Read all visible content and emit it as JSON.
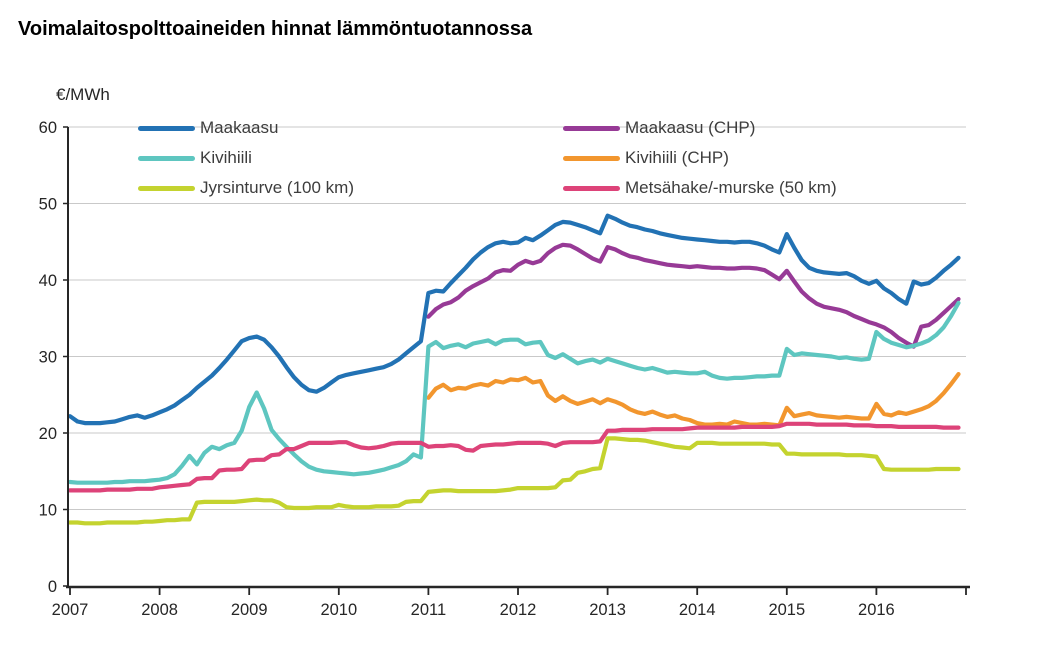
{
  "page": {
    "title": "Voimalaitospolttoaineiden hinnat lämmöntuotannossa"
  },
  "chart_data": {
    "type": "line",
    "title": "Voimalaitospolttoaineiden hinnat lämmöntuotannossa",
    "ylabel": "€/MWh",
    "ylim": [
      0,
      60
    ],
    "y_ticks": [
      0,
      10,
      20,
      30,
      40,
      50,
      60
    ],
    "x_tick_labels": [
      "2007",
      "2008",
      "2009",
      "2010",
      "2011",
      "2012",
      "2013",
      "2014",
      "2015",
      "2016"
    ],
    "frequency": "monthly",
    "x_range": "2007-01 to 2016-12",
    "grid": true,
    "legend_position": "top-inside-two-columns",
    "series": [
      {
        "name": "Maakaasu",
        "color": "#2272b4",
        "values": [
          22.2,
          21.5,
          21.3,
          21.3,
          21.3,
          21.4,
          21.5,
          21.8,
          22.1,
          22.3,
          22.0,
          22.3,
          22.7,
          23.1,
          23.6,
          24.3,
          25.0,
          25.9,
          26.7,
          27.5,
          28.5,
          29.6,
          30.8,
          32.0,
          32.4,
          32.6,
          32.2,
          31.2,
          30.0,
          28.6,
          27.3,
          26.3,
          25.6,
          25.4,
          25.9,
          26.6,
          27.3,
          27.6,
          27.8,
          28.0,
          28.2,
          28.4,
          28.6,
          29.0,
          29.6,
          30.4,
          31.2,
          32.0,
          38.3,
          38.6,
          38.5,
          39.6,
          40.6,
          41.6,
          42.7,
          43.6,
          44.3,
          44.8,
          45.0,
          44.8,
          44.9,
          45.5,
          45.2,
          45.8,
          46.5,
          47.2,
          47.6,
          47.5,
          47.2,
          46.9,
          46.5,
          46.1,
          48.4,
          48.0,
          47.5,
          47.1,
          46.9,
          46.6,
          46.4,
          46.1,
          45.9,
          45.7,
          45.5,
          45.4,
          45.3,
          45.2,
          45.1,
          45.0,
          45.0,
          44.9,
          45.0,
          45.0,
          44.8,
          44.5,
          44.0,
          43.6,
          46.0,
          44.2,
          42.6,
          41.6,
          41.2,
          41.0,
          40.9,
          40.8,
          40.9,
          40.5,
          39.9,
          39.5,
          39.9,
          38.9,
          38.3,
          37.5,
          36.9,
          39.8,
          39.4,
          39.6,
          40.3,
          41.2,
          42.0,
          42.9
        ]
      },
      {
        "name": "Maakaasu (CHP)",
        "color": "#973a96",
        "values": [
          null,
          null,
          null,
          null,
          null,
          null,
          null,
          null,
          null,
          null,
          null,
          null,
          null,
          null,
          null,
          null,
          null,
          null,
          null,
          null,
          null,
          null,
          null,
          null,
          null,
          null,
          null,
          null,
          null,
          null,
          null,
          null,
          null,
          null,
          null,
          null,
          null,
          null,
          null,
          null,
          null,
          null,
          null,
          null,
          null,
          null,
          null,
          null,
          35.2,
          36.2,
          36.8,
          37.1,
          37.7,
          38.6,
          39.2,
          39.7,
          40.2,
          41.0,
          41.3,
          41.2,
          42.0,
          42.5,
          42.2,
          42.5,
          43.5,
          44.2,
          44.6,
          44.5,
          44.0,
          43.4,
          42.8,
          42.4,
          44.3,
          44.0,
          43.5,
          43.1,
          42.9,
          42.6,
          42.4,
          42.2,
          42.0,
          41.9,
          41.8,
          41.7,
          41.8,
          41.7,
          41.6,
          41.6,
          41.5,
          41.5,
          41.6,
          41.6,
          41.5,
          41.3,
          40.7,
          40.1,
          41.2,
          39.8,
          38.5,
          37.6,
          36.9,
          36.5,
          36.3,
          36.1,
          35.8,
          35.3,
          34.9,
          34.5,
          34.2,
          33.8,
          33.2,
          32.4,
          31.8,
          31.3,
          33.9,
          34.1,
          34.8,
          35.7,
          36.6,
          37.5
        ]
      },
      {
        "name": "Kivihiili",
        "color": "#5ec6c0",
        "values": [
          13.6,
          13.5,
          13.5,
          13.5,
          13.5,
          13.5,
          13.6,
          13.6,
          13.7,
          13.7,
          13.7,
          13.8,
          13.9,
          14.1,
          14.6,
          15.7,
          17.0,
          15.9,
          17.4,
          18.2,
          17.9,
          18.4,
          18.7,
          20.3,
          23.4,
          25.3,
          23.2,
          20.4,
          19.2,
          18.2,
          17.2,
          16.3,
          15.6,
          15.2,
          15.0,
          14.9,
          14.8,
          14.7,
          14.6,
          14.7,
          14.8,
          15.0,
          15.2,
          15.5,
          15.8,
          16.3,
          17.2,
          16.8,
          31.3,
          31.9,
          31.1,
          31.4,
          31.6,
          31.2,
          31.7,
          31.9,
          32.1,
          31.6,
          32.1,
          32.2,
          32.2,
          31.6,
          31.8,
          31.9,
          30.2,
          29.8,
          30.3,
          29.7,
          29.1,
          29.4,
          29.6,
          29.2,
          29.7,
          29.4,
          29.1,
          28.8,
          28.5,
          28.3,
          28.5,
          28.2,
          27.9,
          28.0,
          27.9,
          27.8,
          27.8,
          28.0,
          27.5,
          27.2,
          27.1,
          27.2,
          27.2,
          27.3,
          27.4,
          27.4,
          27.5,
          27.5,
          31.0,
          30.2,
          30.4,
          30.3,
          30.2,
          30.1,
          30.0,
          29.8,
          29.9,
          29.7,
          29.6,
          29.7,
          33.2,
          32.3,
          31.8,
          31.5,
          31.2,
          31.4,
          31.7,
          32.1,
          32.8,
          33.8,
          35.3,
          37.0
        ]
      },
      {
        "name": "Kivihiili (CHP)",
        "color": "#f2962e",
        "values": [
          null,
          null,
          null,
          null,
          null,
          null,
          null,
          null,
          null,
          null,
          null,
          null,
          null,
          null,
          null,
          null,
          null,
          null,
          null,
          null,
          null,
          null,
          null,
          null,
          null,
          null,
          null,
          null,
          null,
          null,
          null,
          null,
          null,
          null,
          null,
          null,
          null,
          null,
          null,
          null,
          null,
          null,
          null,
          null,
          null,
          null,
          null,
          null,
          24.6,
          25.8,
          26.3,
          25.6,
          25.9,
          25.8,
          26.2,
          26.4,
          26.2,
          26.8,
          26.6,
          27.0,
          26.9,
          27.2,
          26.6,
          26.8,
          24.9,
          24.2,
          24.8,
          24.2,
          23.8,
          24.1,
          24.4,
          23.9,
          24.4,
          24.1,
          23.7,
          23.1,
          22.7,
          22.5,
          22.8,
          22.4,
          22.1,
          22.3,
          21.9,
          21.7,
          21.3,
          21.1,
          21.1,
          21.2,
          21.1,
          21.5,
          21.3,
          21.1,
          21.1,
          21.2,
          21.1,
          21.0,
          23.3,
          22.2,
          22.4,
          22.6,
          22.3,
          22.2,
          22.1,
          22.0,
          22.1,
          22.0,
          21.9,
          21.9,
          23.8,
          22.5,
          22.3,
          22.7,
          22.5,
          22.8,
          23.1,
          23.5,
          24.2,
          25.2,
          26.4,
          27.7
        ]
      },
      {
        "name": "Jyrsinturve (100 km)",
        "color": "#c4d32f",
        "values": [
          8.3,
          8.3,
          8.2,
          8.2,
          8.2,
          8.3,
          8.3,
          8.3,
          8.3,
          8.3,
          8.4,
          8.4,
          8.5,
          8.6,
          8.6,
          8.7,
          8.7,
          10.9,
          11.0,
          11.0,
          11.0,
          11.0,
          11.0,
          11.1,
          11.2,
          11.3,
          11.2,
          11.2,
          10.9,
          10.3,
          10.2,
          10.2,
          10.2,
          10.3,
          10.3,
          10.3,
          10.6,
          10.4,
          10.3,
          10.3,
          10.3,
          10.4,
          10.4,
          10.4,
          10.5,
          11.0,
          11.1,
          11.1,
          12.3,
          12.4,
          12.5,
          12.5,
          12.4,
          12.4,
          12.4,
          12.4,
          12.4,
          12.4,
          12.5,
          12.6,
          12.8,
          12.8,
          12.8,
          12.8,
          12.8,
          12.9,
          13.8,
          13.9,
          14.8,
          15.0,
          15.3,
          15.4,
          19.3,
          19.3,
          19.2,
          19.1,
          19.1,
          19.0,
          18.8,
          18.6,
          18.4,
          18.2,
          18.1,
          18.0,
          18.7,
          18.7,
          18.7,
          18.6,
          18.6,
          18.6,
          18.6,
          18.6,
          18.6,
          18.6,
          18.5,
          18.5,
          17.3,
          17.3,
          17.2,
          17.2,
          17.2,
          17.2,
          17.2,
          17.2,
          17.1,
          17.1,
          17.1,
          17.0,
          16.9,
          15.3,
          15.2,
          15.2,
          15.2,
          15.2,
          15.2,
          15.2,
          15.3,
          15.3,
          15.3,
          15.3
        ]
      },
      {
        "name": "Metsähake/-murske (50 km)",
        "color": "#dd4379",
        "values": [
          12.5,
          12.5,
          12.5,
          12.5,
          12.5,
          12.6,
          12.6,
          12.6,
          12.6,
          12.7,
          12.7,
          12.7,
          12.9,
          13.0,
          13.1,
          13.2,
          13.3,
          14.0,
          14.1,
          14.1,
          15.1,
          15.2,
          15.2,
          15.3,
          16.4,
          16.5,
          16.5,
          17.1,
          17.2,
          17.9,
          17.9,
          18.3,
          18.7,
          18.7,
          18.7,
          18.7,
          18.8,
          18.8,
          18.4,
          18.1,
          18.0,
          18.1,
          18.3,
          18.6,
          18.7,
          18.7,
          18.7,
          18.7,
          18.2,
          18.3,
          18.3,
          18.4,
          18.3,
          17.8,
          17.7,
          18.3,
          18.4,
          18.5,
          18.5,
          18.6,
          18.7,
          18.7,
          18.7,
          18.7,
          18.6,
          18.3,
          18.7,
          18.8,
          18.8,
          18.8,
          18.8,
          18.9,
          20.3,
          20.3,
          20.4,
          20.4,
          20.4,
          20.4,
          20.5,
          20.5,
          20.5,
          20.5,
          20.5,
          20.6,
          20.7,
          20.7,
          20.7,
          20.7,
          20.7,
          20.7,
          20.8,
          20.8,
          20.8,
          20.8,
          20.8,
          20.9,
          21.2,
          21.2,
          21.2,
          21.2,
          21.1,
          21.1,
          21.1,
          21.1,
          21.1,
          21.0,
          21.0,
          21.0,
          20.9,
          20.9,
          20.9,
          20.8,
          20.8,
          20.8,
          20.8,
          20.8,
          20.8,
          20.7,
          20.7,
          20.7
        ]
      }
    ],
    "colors": {
      "grid": "#c9c9c9",
      "axis": "#262626",
      "tick_text": "#262626"
    }
  }
}
